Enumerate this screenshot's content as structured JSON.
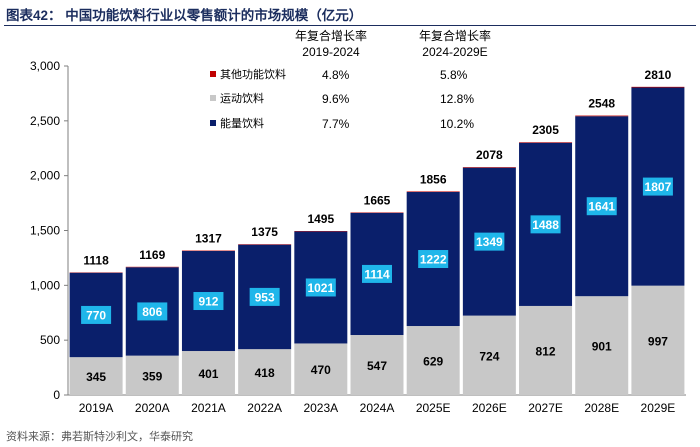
{
  "header": {
    "title": "图表42： 中国功能饮料行业以零售额计的市场规模（亿元）"
  },
  "footer": {
    "source": "资料来源：弗若斯特沙利文，华泰研究"
  },
  "colors": {
    "energy": "#0a1f6b",
    "sports": "#c8c8c8",
    "other": "#c00000",
    "label_box": "#1fb6ea",
    "axis": "#7f7f7f"
  },
  "chart_data": {
    "type": "bar",
    "stacked": true,
    "title": "中国功能饮料行业以零售额计的市场规模（亿元）",
    "categories": [
      "2019A",
      "2020A",
      "2021A",
      "2022A",
      "2023A",
      "2024A",
      "2025E",
      "2026E",
      "2027E",
      "2028E",
      "2029E"
    ],
    "series": [
      {
        "name": "运动饮料",
        "values": [
          345,
          359,
          401,
          418,
          470,
          547,
          629,
          724,
          812,
          901,
          997
        ]
      },
      {
        "name": "能量饮料",
        "values": [
          770,
          806,
          912,
          953,
          1021,
          1114,
          1222,
          1349,
          1488,
          1641,
          1807
        ]
      },
      {
        "name": "其他功能饮料",
        "values": [
          3,
          4,
          4,
          4,
          4,
          4,
          5,
          5,
          5,
          6,
          6
        ]
      }
    ],
    "totals": [
      1118,
      1169,
      1317,
      1375,
      1495,
      1665,
      1856,
      2078,
      2305,
      2548,
      2810
    ],
    "ylim": [
      0,
      3000
    ],
    "yticks": [
      0,
      500,
      1000,
      1500,
      2000,
      2500,
      3000
    ],
    "ytick_labels": [
      "0",
      "500",
      "1,000",
      "1,500",
      "2,000",
      "2,500",
      "3,000"
    ],
    "xlabel": "",
    "ylabel": "",
    "legend": {
      "placement": "top-left",
      "entries": [
        {
          "name": "其他功能饮料",
          "color_key": "other"
        },
        {
          "name": "运动饮料",
          "color_key": "sports"
        },
        {
          "name": "能量饮料",
          "color_key": "energy"
        }
      ]
    },
    "cagr_table": {
      "headers": [
        {
          "line1": "年复合增长率",
          "line2": "2019-2024"
        },
        {
          "line1": "年复合增长率",
          "line2": "2024-2029E"
        }
      ],
      "rows": [
        {
          "series": "其他功能饮料",
          "cagr_2019_2024": "4.8%",
          "cagr_2024_2029": "5.8%"
        },
        {
          "series": "运动饮料",
          "cagr_2019_2024": "9.6%",
          "cagr_2024_2029": "12.8%"
        },
        {
          "series": "能量饮料",
          "cagr_2019_2024": "7.7%",
          "cagr_2024_2029": "10.2%"
        }
      ]
    }
  }
}
